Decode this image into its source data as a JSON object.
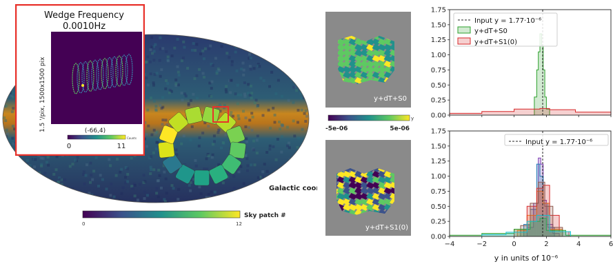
{
  "sky_map": {
    "coord_label": "Galactic coord.",
    "colorbar_title": "Sky patch #",
    "colorbar_min": "0",
    "colorbar_max": "12",
    "colormap": [
      "#440154",
      "#3b528b",
      "#21918c",
      "#5ec962",
      "#fde725"
    ]
  },
  "inset": {
    "title_line1": "Wedge Frequency",
    "title_line2": "0.0010Hz",
    "ylabel": "1.5 '/pix,  1500x1500 pix",
    "coord": "(-66,4)",
    "cbar_min": "0",
    "cbar_max": "11",
    "cbar_unit": "Counts",
    "border_color": "#e8322b"
  },
  "patches": {
    "top_label": "y+dT+S0",
    "bottom_label": "y+dT+S1(0)",
    "cbar_min": "-5e-06",
    "cbar_max": "5e-06",
    "cbar_unit": "y"
  },
  "chart_data": [
    {
      "type": "histogram",
      "xlim": [
        -4,
        6
      ],
      "ylim": [
        0,
        1.75
      ],
      "yticks": [
        "0.00",
        "0.25",
        "0.50",
        "0.75",
        "1.00",
        "1.25",
        "1.50",
        "1.75"
      ],
      "xticks": [
        "−4",
        "−2",
        "0",
        "2",
        "4",
        "6"
      ],
      "show_xticklabels": false,
      "input_value": 1.77,
      "legend_input": "Input y = 1.77·10⁻⁶",
      "legend": "top-left",
      "series": [
        {
          "name": "y+dT+S0",
          "color": "#2ca02c",
          "bins": [
            [
              1.0,
              1.25,
              0.0
            ],
            [
              1.25,
              1.4,
              0.3
            ],
            [
              1.4,
              1.5,
              0.75
            ],
            [
              1.5,
              1.6,
              1.05
            ],
            [
              1.6,
              1.7,
              1.35
            ],
            [
              1.7,
              1.8,
              1.15
            ],
            [
              1.8,
              1.9,
              0.75
            ],
            [
              1.9,
              2.0,
              0.3
            ],
            [
              2.0,
              2.2,
              0.1
            ]
          ]
        },
        {
          "name": "y+dT+S1(0)",
          "color": "#d62728",
          "bins": [
            [
              -4,
              -2,
              0.03
            ],
            [
              -2,
              0,
              0.06
            ],
            [
              0,
              1.6,
              0.1
            ],
            [
              1.6,
              2.2,
              0.11
            ],
            [
              2.2,
              3.8,
              0.09
            ],
            [
              3.8,
              6,
              0.05
            ]
          ]
        }
      ]
    },
    {
      "type": "histogram",
      "xlim": [
        -4,
        6
      ],
      "ylim": [
        0,
        1.75
      ],
      "yticks": [
        "0.00",
        "0.25",
        "0.50",
        "0.75",
        "1.00",
        "1.25",
        "1.50",
        "1.75"
      ],
      "xticks": [
        "−4",
        "−2",
        "0",
        "2",
        "4",
        "6"
      ],
      "show_xticklabels": true,
      "xlabel": "y in units of 10⁻⁶",
      "input_value": 1.77,
      "legend_input": "Input y = 1.77·10⁻⁶",
      "legend": "top-right",
      "series": [
        {
          "color": "#7b3ab3",
          "bins": [
            [
              0.8,
              1.2,
              0.15
            ],
            [
              1.2,
              1.5,
              0.55
            ],
            [
              1.5,
              1.65,
              1.3
            ],
            [
              1.65,
              1.8,
              1.2
            ],
            [
              1.8,
              2.0,
              0.6
            ],
            [
              2.0,
              2.4,
              0.2
            ],
            [
              2.4,
              2.8,
              0.05
            ]
          ]
        },
        {
          "color": "#1f77b4",
          "bins": [
            [
              0.6,
              1.0,
              0.2
            ],
            [
              1.0,
              1.4,
              0.45
            ],
            [
              1.4,
              1.6,
              1.2
            ],
            [
              1.6,
              1.8,
              1.0
            ],
            [
              1.8,
              2.1,
              0.55
            ],
            [
              2.1,
              2.5,
              0.15
            ]
          ]
        },
        {
          "color": "#ff7f0e",
          "bins": [
            [
              0.2,
              0.8,
              0.1
            ],
            [
              0.8,
              1.4,
              0.35
            ],
            [
              1.4,
              1.8,
              0.75
            ],
            [
              1.8,
              2.2,
              0.55
            ],
            [
              2.2,
              3.0,
              0.12
            ]
          ]
        },
        {
          "color": "#d62728",
          "bins": [
            [
              0.0,
              0.8,
              0.12
            ],
            [
              0.8,
              1.4,
              0.5
            ],
            [
              1.4,
              1.8,
              0.8
            ],
            [
              1.8,
              2.2,
              0.85
            ],
            [
              2.2,
              2.8,
              0.35
            ],
            [
              2.8,
              3.4,
              0.08
            ]
          ]
        },
        {
          "color": "#8c564b",
          "bins": [
            [
              0.4,
              1.0,
              0.18
            ],
            [
              1.0,
              1.5,
              0.55
            ],
            [
              1.5,
              1.9,
              0.9
            ],
            [
              1.9,
              2.4,
              0.5
            ],
            [
              2.4,
              3.0,
              0.15
            ]
          ]
        },
        {
          "color": "#2ca02c",
          "bins": [
            [
              -4,
              -2,
              0.02
            ],
            [
              -2,
              0,
              0.05
            ],
            [
              0,
              1.0,
              0.12
            ],
            [
              1.0,
              1.6,
              0.25
            ],
            [
              1.6,
              2.0,
              0.3
            ],
            [
              2.0,
              3.2,
              0.1
            ],
            [
              3.2,
              6,
              0.02
            ]
          ]
        },
        {
          "color": "#17becf",
          "bins": [
            [
              -2,
              -0.5,
              0.03
            ],
            [
              -0.5,
              0.8,
              0.07
            ],
            [
              0.8,
              1.4,
              0.25
            ],
            [
              1.4,
              2.2,
              0.35
            ],
            [
              2.2,
              3.5,
              0.08
            ]
          ]
        }
      ]
    }
  ]
}
